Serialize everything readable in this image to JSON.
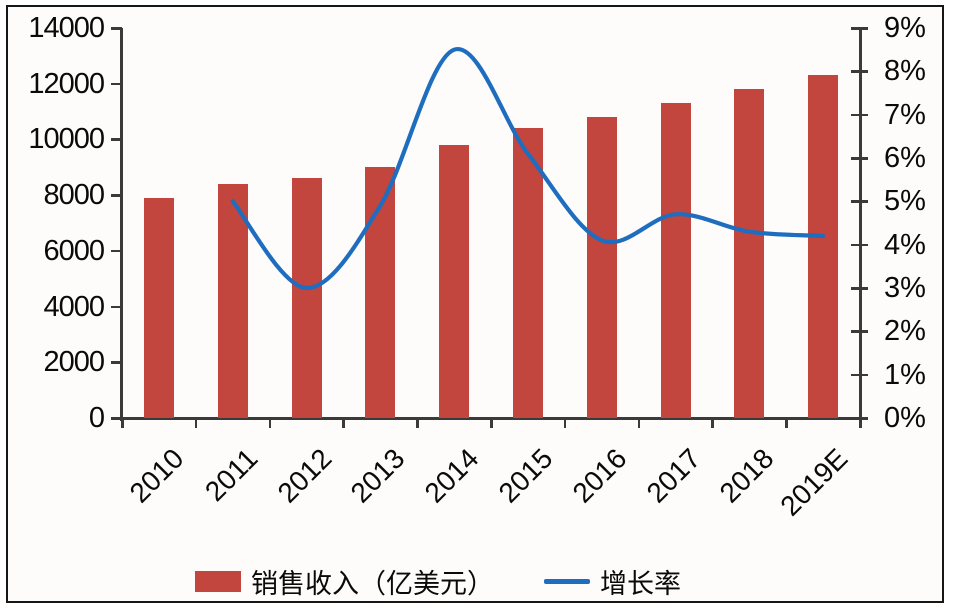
{
  "chart_data": {
    "type": "bar",
    "subtype": "combo-bar-line-dual-axis",
    "title": "",
    "categories": [
      "2010",
      "2011",
      "2012",
      "2013",
      "2014",
      "2015",
      "2016",
      "2017",
      "2018",
      "2019E"
    ],
    "series": [
      {
        "name": "销售收入（亿美元）",
        "type": "bar",
        "axis": "left",
        "color": "#C2453E",
        "values": [
          7900,
          8400,
          8600,
          9000,
          9800,
          10400,
          10800,
          11300,
          11800,
          12300
        ]
      },
      {
        "name": "增长率",
        "type": "line",
        "axis": "right",
        "color": "#1F6DBF",
        "values": [
          null,
          5.0,
          3.0,
          4.9,
          8.5,
          6.1,
          4.1,
          4.7,
          4.3,
          4.2
        ]
      }
    ],
    "left_axis": {
      "min": 0,
      "max": 14000,
      "step": 2000,
      "tick_labels": [
        "0",
        "2000",
        "4000",
        "6000",
        "8000",
        "10000",
        "12000",
        "14000"
      ]
    },
    "right_axis": {
      "min": 0,
      "max": 9,
      "step": 1,
      "tick_labels": [
        "0%",
        "1%",
        "2%",
        "3%",
        "4%",
        "5%",
        "6%",
        "7%",
        "8%",
        "9%"
      ]
    },
    "grid": false,
    "legend_position": "bottom"
  },
  "colors": {
    "bar": "#C2453E",
    "line": "#1F6DBF",
    "axis": "#3a3a3a",
    "text": "#0a0a0a",
    "frame_border": "#161616",
    "background": "#fdfcfa"
  }
}
